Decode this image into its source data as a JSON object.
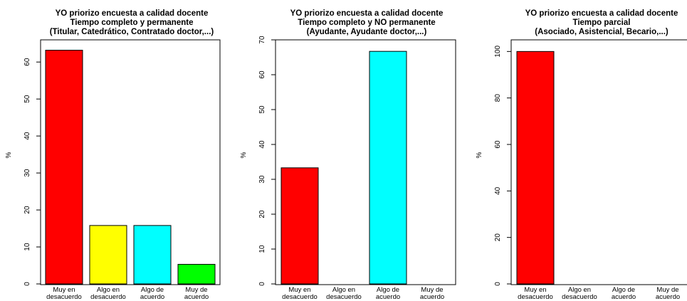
{
  "colors": {
    "muy_en_desacuerdo": "#ff0000",
    "algo_en_desacuerdo": "#ffff00",
    "algo_de_acuerdo": "#00ffff",
    "muy_de_acuerdo": "#00ff00",
    "bar_stroke": "#000000",
    "axis": "#000000"
  },
  "chart_data": [
    {
      "type": "bar",
      "title": [
        "YO priorizo encuesta a calidad docente",
        "Tiempo completo y permanente",
        "(Titular, Catedrático, Contratado doctor,...)"
      ],
      "ylabel": "%",
      "xlabel": "",
      "ylim": [
        0,
        66
      ],
      "yticks": [
        0,
        10,
        20,
        30,
        40,
        50,
        60
      ],
      "categories": [
        [
          "Muy en",
          "desacuerdo"
        ],
        [
          "Algo en",
          "desacuerdo"
        ],
        [
          "Algo de",
          "acuerdo"
        ],
        [
          "Muy de",
          "acuerdo"
        ]
      ],
      "values": [
        63.2,
        15.8,
        15.8,
        5.3
      ],
      "grid": false,
      "legend": "none"
    },
    {
      "type": "bar",
      "title": [
        "YO priorizo encuesta a calidad docente",
        "Tiempo completo y NO permanente",
        "(Ayudante, Ayudante doctor,...)"
      ],
      "ylabel": "%",
      "xlabel": "",
      "ylim": [
        0,
        70
      ],
      "yticks": [
        0,
        10,
        20,
        30,
        40,
        50,
        60,
        70
      ],
      "categories": [
        [
          "Muy en",
          "desacuerdo"
        ],
        [
          "Algo en",
          "desacuerdo"
        ],
        [
          "Algo de",
          "acuerdo"
        ],
        [
          "Muy de",
          "acuerdo"
        ]
      ],
      "values": [
        33.3,
        0,
        66.7,
        0
      ],
      "grid": false,
      "legend": "none"
    },
    {
      "type": "bar",
      "title": [
        "YO priorizo encuesta a calidad docente",
        "Tiempo parcial",
        "(Asociado, Asistencial, Becario,...)"
      ],
      "ylabel": "%",
      "xlabel": "",
      "ylim": [
        0,
        105
      ],
      "yticks": [
        0,
        20,
        40,
        60,
        80,
        100
      ],
      "categories": [
        [
          "Muy en",
          "desacuerdo"
        ],
        [
          "Algo en",
          "desacuerdo"
        ],
        [
          "Algo de",
          "acuerdo"
        ],
        [
          "Muy de",
          "acuerdo"
        ]
      ],
      "values": [
        100,
        0,
        0,
        0
      ],
      "grid": false,
      "legend": "none"
    }
  ]
}
